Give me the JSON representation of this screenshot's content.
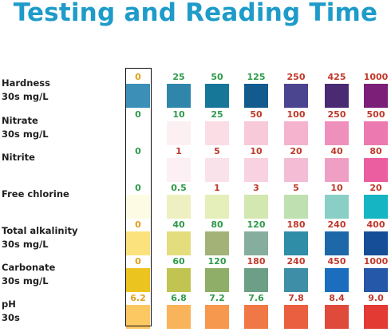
{
  "title": "Testing and Reading Time",
  "rows": [
    {
      "name": "Hardness",
      "unit": "30s mg/L",
      "labels": [
        "0",
        "25",
        "50",
        "125",
        "250",
        "425",
        "1000"
      ],
      "label_colors": [
        "y",
        "g",
        "g",
        "g",
        "r",
        "r",
        "r"
      ],
      "colors": [
        "#3c8fb6",
        "#2f86aa",
        "#167799",
        "#135a8e",
        "#4b4590",
        "#4b2a74",
        "#7b1f78"
      ]
    },
    {
      "name": "Nitrate",
      "unit": "30s mg/L",
      "labels": [
        "0",
        "10",
        "25",
        "50",
        "100",
        "250",
        "500"
      ],
      "label_colors": [
        "g",
        "g",
        "g",
        "r",
        "r",
        "r",
        "r"
      ],
      "colors": [
        "#ffffff",
        "#fdf0f3",
        "#fbdde6",
        "#f8cad9",
        "#f5b3cd",
        "#ef90bc",
        "#ec7ab0"
      ]
    },
    {
      "name": "Nitrite",
      "unit": "",
      "labels": [
        "0",
        "1",
        "5",
        "10",
        "20",
        "40",
        "80"
      ],
      "label_colors": [
        "g",
        "r",
        "r",
        "r",
        "r",
        "r",
        "r"
      ],
      "colors": [
        "#ffffff",
        "#fcf0f4",
        "#fae2ea",
        "#f8d2e0",
        "#f5bdd5",
        "#f09fc4",
        "#eb5e9f"
      ]
    },
    {
      "name": "Free chlorine",
      "unit": "",
      "labels": [
        "0",
        "0.5",
        "1",
        "3",
        "5",
        "10",
        "20"
      ],
      "label_colors": [
        "g",
        "g",
        "r",
        "r",
        "r",
        "r",
        "r"
      ],
      "colors": [
        "#fdfbe3",
        "#eff0c2",
        "#e5efba",
        "#d3e7b0",
        "#bfe0b0",
        "#89cfc5",
        "#16b5c4"
      ]
    },
    {
      "name": "Total alkalinity",
      "unit": "30s mg/L",
      "labels": [
        "0",
        "40",
        "80",
        "120",
        "180",
        "240",
        "400"
      ],
      "label_colors": [
        "y",
        "g",
        "g",
        "g",
        "r",
        "r",
        "r"
      ],
      "colors": [
        "#fbe27d",
        "#e3dd7e",
        "#a3b277",
        "#86ae9f",
        "#2f8da7",
        "#1d68a8",
        "#164e97"
      ]
    },
    {
      "name": "Carbonate",
      "unit": "30s mg/L",
      "labels": [
        "0",
        "60",
        "120",
        "180",
        "240",
        "450",
        "1000"
      ],
      "label_colors": [
        "y",
        "g",
        "g",
        "r",
        "r",
        "r",
        "r"
      ],
      "colors": [
        "#ecc420",
        "#c1c451",
        "#8fae67",
        "#6d9f87",
        "#3f8ea8",
        "#1a6ebd",
        "#2558a8"
      ]
    },
    {
      "name": "pH",
      "unit": "30s",
      "labels": [
        "6.2",
        "6.8",
        "7.2",
        "7.6",
        "7.8",
        "8.4",
        "9.0"
      ],
      "label_colors": [
        "y",
        "g",
        "g",
        "g",
        "r",
        "r",
        "r"
      ],
      "colors": [
        "#fbc862",
        "#f9b35a",
        "#f6984e",
        "#f07846",
        "#ea5f3f",
        "#df4a3a",
        "#e33a34"
      ]
    }
  ]
}
